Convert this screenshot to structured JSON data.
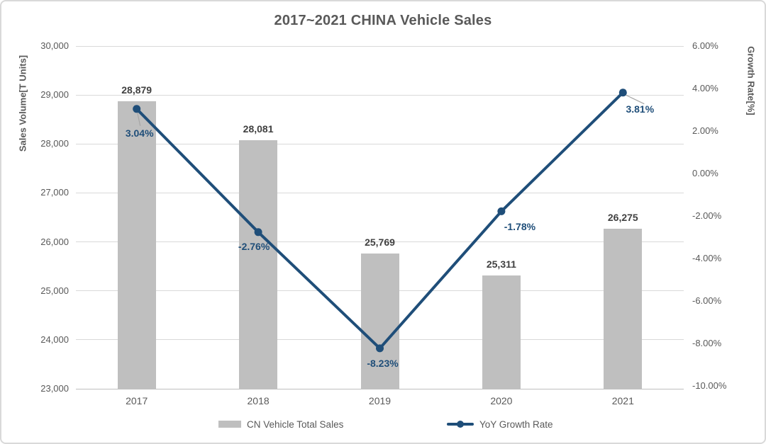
{
  "chart_data": {
    "type": "combo-bar-line",
    "title": "2017~2021 CHINA Vehicle Sales",
    "categories": [
      "2017",
      "2018",
      "2019",
      "2020",
      "2021"
    ],
    "series": [
      {
        "name": "CN Vehicle Total Sales",
        "type": "bar",
        "axis": "left",
        "values": [
          28879,
          28081,
          25769,
          25311,
          26275
        ],
        "labels": [
          "28,879",
          "28,081",
          "25,769",
          "25,311",
          "26,275"
        ],
        "color": "#BFBFBF"
      },
      {
        "name": "YoY Growth Rate",
        "type": "line",
        "axis": "right",
        "values": [
          3.04,
          -2.76,
          -8.23,
          -1.78,
          3.81
        ],
        "labels": [
          "3.04%",
          "-2.76%",
          "-8.23%",
          "-1.78%",
          "3.81%"
        ],
        "color": "#1F4E79"
      }
    ],
    "left_axis": {
      "title": "Sales Volume[T Units]",
      "min": 23000,
      "max": 30000,
      "step": 1000,
      "tick_labels": [
        "30,000",
        "29,000",
        "28,000",
        "27,000",
        "26,000",
        "25,000",
        "24,000",
        "23,000"
      ]
    },
    "right_axis": {
      "title": "Growth Rate[%]",
      "min": -10,
      "max": 6,
      "step": 2,
      "tick_labels": [
        "6.00%",
        "4.00%",
        "2.00%",
        "0.00%",
        "-2.00%",
        "-4.00%",
        "-6.00%",
        "-8.00%",
        "-10.00%"
      ]
    },
    "legend": [
      "CN Vehicle Total Sales",
      "YoY Growth Rate"
    ],
    "legend_position": "bottom",
    "grid": true,
    "colors": {
      "bar": "#BFBFBF",
      "line": "#1F4E79",
      "gridline": "#D9D9D9",
      "axis_line": "#BFBFBF",
      "text": "#595959",
      "bar_label": "#404040",
      "leader_line": "#A6A6A6",
      "border": "#D9D9D9"
    }
  }
}
